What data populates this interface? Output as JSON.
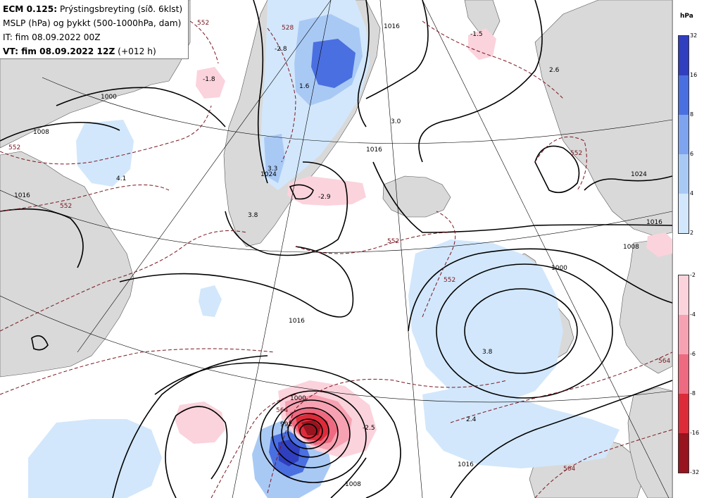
{
  "header": {
    "model_prefix": "ECM 0.125:",
    "title_rest": " Prýstingsbreyting (síð. 6klst)",
    "line2": "MSLP (hPa) og þykkt (500-1000hPa, dam)",
    "line3": "IT: fim 08.09.2022 00Z",
    "vt_bold": "VT: fim 08.09.2022 12Z",
    "vt_rest": " (+012 h)"
  },
  "legend": {
    "unit": "hPa",
    "rise": {
      "labels": [
        "32",
        "16",
        "8",
        "6",
        "4",
        "2"
      ],
      "colors": [
        "#2f3fbf",
        "#4a6fe0",
        "#7ea4ef",
        "#a9c9f5",
        "#d2e7fb"
      ]
    },
    "fall": {
      "labels": [
        "-2",
        "-4",
        "-6",
        "-8",
        "-16",
        "-32"
      ],
      "colors": [
        "#fbd3dc",
        "#f6a2b2",
        "#ee6a80",
        "#de2b3a",
        "#98141f"
      ]
    }
  },
  "map": {
    "colors": {
      "land": "#d9d9d9",
      "sea": "#ffffff",
      "isobar": "#000000",
      "thickness": "#7a1620",
      "grid": "#000000"
    },
    "isobar_labels": [
      "1000",
      "1008",
      "1016",
      "1016",
      "1008",
      "1016",
      "1000",
      "992",
      "1016",
      "1008",
      "1024",
      "1000",
      "1016",
      "1016",
      "1024"
    ],
    "thickness_labels": [
      "552",
      "552",
      "552",
      "528",
      "552",
      "552",
      "564",
      "564",
      "564",
      "552"
    ],
    "value_labels": [
      "4.1",
      "-2.9",
      "3.8",
      "-2.5",
      "2.4",
      "3.8",
      "-1.8",
      "-1.5",
      "3.0",
      "2.6",
      "-2.8",
      "1.6",
      "3.3"
    ]
  }
}
